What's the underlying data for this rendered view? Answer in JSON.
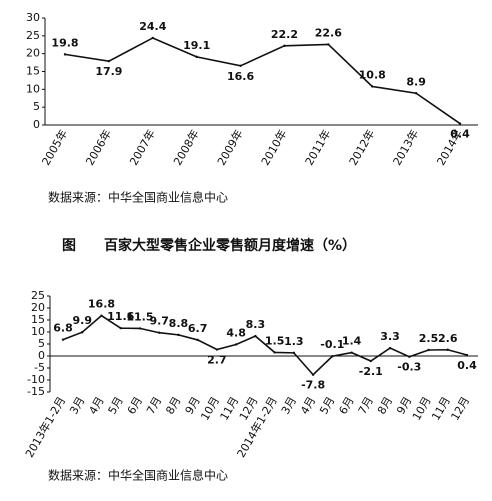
{
  "chart_data": [
    {
      "type": "line",
      "color": "#111111",
      "categories": [
        "2005年",
        "2006年",
        "2007年",
        "2008年",
        "2009年",
        "2010年",
        "2011年",
        "2012年",
        "2013年",
        "2014年"
      ],
      "values": [
        19.8,
        17.9,
        24.4,
        19.1,
        16.6,
        22.2,
        22.6,
        10.8,
        8.9,
        0.4
      ],
      "ylim": [
        0,
        30
      ],
      "yticks": [
        0,
        5,
        10,
        15,
        20,
        25,
        30
      ],
      "source": "数据来源：中华全国商业信息中心"
    },
    {
      "type": "line",
      "color": "#111111",
      "figure_label": "图",
      "title": "百家大型零售企业零售额月度增速（%）",
      "categories": [
        "2013年1-2月",
        "3月",
        "4月",
        "5月",
        "6月",
        "7月",
        "8月",
        "9月",
        "10月",
        "11月",
        "12月",
        "2014年1-2月",
        "3月",
        "4月",
        "5月",
        "6月",
        "7月",
        "8月",
        "9月",
        "10月",
        "11月",
        "12月"
      ],
      "values": [
        6.8,
        9.9,
        16.8,
        11.6,
        11.5,
        9.7,
        8.8,
        6.7,
        2.7,
        4.8,
        8.3,
        1.5,
        1.3,
        -7.8,
        -0.1,
        1.4,
        -2.1,
        3.3,
        -0.3,
        2.5,
        2.6,
        0.4
      ],
      "ylim": [
        -15,
        25
      ],
      "yticks": [
        -15,
        -10,
        -5,
        0,
        5,
        10,
        15,
        20,
        25
      ],
      "source": "数据来源：中华全国商业信息中心"
    }
  ]
}
